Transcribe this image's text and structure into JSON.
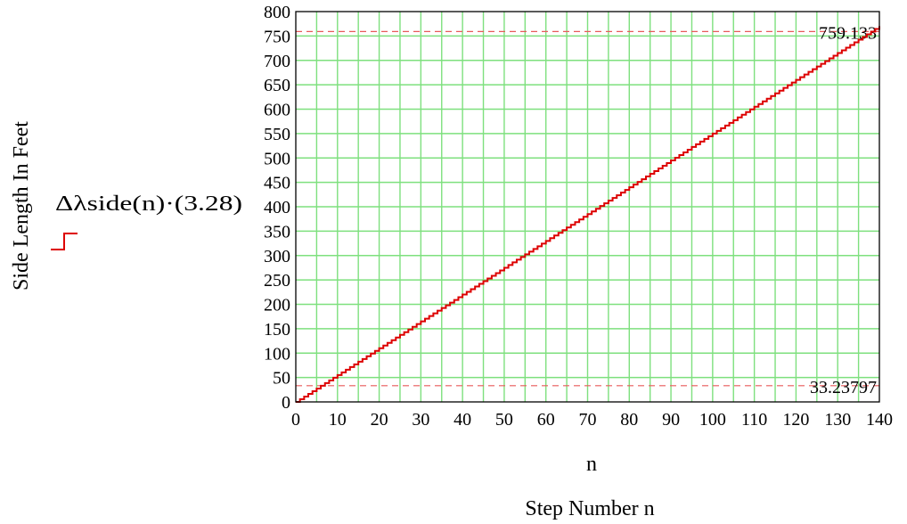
{
  "chart_data": {
    "type": "line",
    "step": true,
    "xlabel": "n",
    "caption": "Step Number n",
    "ylabel": "Side Length In Feet",
    "legend": {
      "label": "Δλside(n)·(3.28)",
      "placement": "left"
    },
    "xlim": [
      0,
      140
    ],
    "ylim": [
      0,
      800
    ],
    "x_ticks": [
      0,
      10,
      20,
      30,
      40,
      50,
      60,
      70,
      80,
      90,
      100,
      110,
      120,
      130,
      140
    ],
    "y_ticks": [
      0,
      50,
      100,
      150,
      200,
      250,
      300,
      350,
      400,
      450,
      500,
      550,
      600,
      650,
      700,
      750,
      800
    ],
    "grid": true,
    "grid_minor_x": true,
    "colors": {
      "series": "#dd0000",
      "grid": "#7ee07e",
      "reference": "#e85a5a"
    },
    "series": [
      {
        "name": "Δλside(n)·(3.28)",
        "x_start": 0,
        "x_end": 140,
        "x_step": 1,
        "y_start": 0,
        "y_end": 770
      }
    ],
    "reference_lines": [
      {
        "y": 759.133,
        "label": "759.133"
      },
      {
        "y": 33.23797,
        "label": "33.23797"
      }
    ]
  }
}
